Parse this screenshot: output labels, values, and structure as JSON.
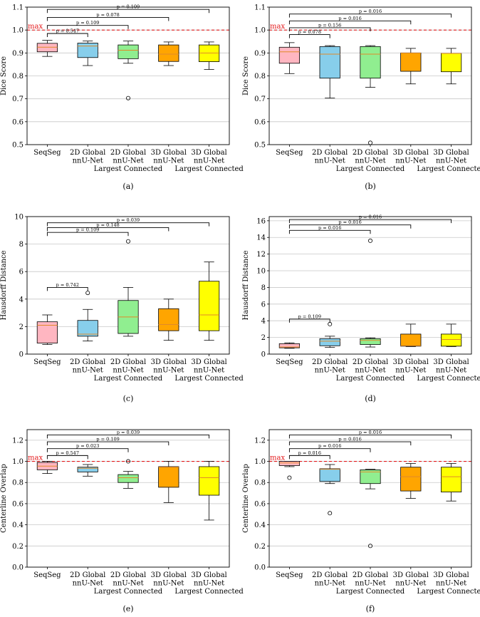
{
  "figure": {
    "common_categories": [
      "SeqSeg",
      "2D Global\nnnU-Net",
      "2D Global\nnnU-Net\nLargest Connected",
      "3D Global\nnnU-Net",
      "3D Global\nnnU-Net\nLargest Connected"
    ],
    "colors": [
      "#ffb6c1",
      "#87ceeb",
      "#90ee90",
      "#ffa500",
      "#ffff00"
    ],
    "median_color": "#e08a2a",
    "max_line_color": "#e41a1c"
  },
  "chart_data": [
    {
      "type": "box",
      "panel": "(a)",
      "ylabel": "Dice Score",
      "ylim": [
        0.5,
        1.1
      ],
      "yticks": [
        0.5,
        0.6,
        0.7,
        0.8,
        0.9,
        1.0,
        1.1
      ],
      "max_line": {
        "value": 1.0,
        "label": "max"
      },
      "boxes": [
        {
          "whislo": 0.885,
          "q1": 0.905,
          "med": 0.925,
          "q3": 0.942,
          "whishi": 0.955,
          "fliers": []
        },
        {
          "whislo": 0.845,
          "q1": 0.88,
          "med": 0.93,
          "q3": 0.943,
          "whishi": 0.952,
          "fliers": []
        },
        {
          "whislo": 0.855,
          "q1": 0.875,
          "med": 0.912,
          "q3": 0.935,
          "whishi": 0.952,
          "fliers": [
            0.703
          ]
        },
        {
          "whislo": 0.845,
          "q1": 0.863,
          "med": 0.895,
          "q3": 0.935,
          "whishi": 0.948,
          "fliers": []
        },
        {
          "whislo": 0.828,
          "q1": 0.862,
          "med": 0.9,
          "q3": 0.935,
          "whishi": 0.948,
          "fliers": []
        }
      ],
      "pvalues": [
        {
          "from": 0,
          "to": 1,
          "label": "p = 0.547",
          "y": 0.985
        },
        {
          "from": 0,
          "to": 2,
          "label": "p = 0.109",
          "y": 1.02
        },
        {
          "from": 0,
          "to": 3,
          "label": "p = 0.078",
          "y": 1.055
        },
        {
          "from": 0,
          "to": 4,
          "label": "p = 0.109",
          "y": 1.09
        }
      ]
    },
    {
      "type": "box",
      "panel": "(b)",
      "ylabel": "Dice Score",
      "ylim": [
        0.5,
        1.1
      ],
      "yticks": [
        0.5,
        0.6,
        0.7,
        0.8,
        0.9,
        1.0,
        1.1
      ],
      "max_line": {
        "value": 1.0,
        "label": "max"
      },
      "boxes": [
        {
          "whislo": 0.81,
          "q1": 0.855,
          "med": 0.905,
          "q3": 0.925,
          "whishi": 0.945,
          "fliers": []
        },
        {
          "whislo": 0.703,
          "q1": 0.79,
          "med": 0.895,
          "q3": 0.928,
          "whishi": 0.932,
          "fliers": []
        },
        {
          "whislo": 0.75,
          "q1": 0.79,
          "med": 0.895,
          "q3": 0.928,
          "whishi": 0.932,
          "fliers": [
            0.508
          ]
        },
        {
          "whislo": 0.765,
          "q1": 0.82,
          "med": 0.9,
          "q3": 0.9,
          "whishi": 0.92,
          "fliers": []
        },
        {
          "whislo": 0.765,
          "q1": 0.818,
          "med": 0.898,
          "q3": 0.898,
          "whishi": 0.92,
          "fliers": []
        }
      ],
      "pvalues": [
        {
          "from": 0,
          "to": 1,
          "label": "p = 0.078",
          "y": 0.98
        },
        {
          "from": 0,
          "to": 2,
          "label": "p = 0.156",
          "y": 1.01
        },
        {
          "from": 0,
          "to": 3,
          "label": "p = 0.016",
          "y": 1.04
        },
        {
          "from": 0,
          "to": 4,
          "label": "p = 0.016",
          "y": 1.07
        }
      ]
    },
    {
      "type": "box",
      "panel": "(c)",
      "ylabel": "Hausdorff Distance",
      "ylim": [
        0,
        10
      ],
      "yticks": [
        0,
        2,
        4,
        6,
        8,
        10
      ],
      "boxes": [
        {
          "whislo": 0.7,
          "q1": 0.8,
          "med": 2.1,
          "q3": 2.35,
          "whishi": 2.85,
          "fliers": []
        },
        {
          "whislo": 0.95,
          "q1": 1.3,
          "med": 1.45,
          "q3": 2.45,
          "whishi": 3.25,
          "fliers": [
            4.45
          ]
        },
        {
          "whislo": 1.3,
          "q1": 1.5,
          "med": 2.7,
          "q3": 3.9,
          "whishi": 4.85,
          "fliers": [
            8.2
          ]
        },
        {
          "whislo": 1.0,
          "q1": 1.7,
          "med": 2.15,
          "q3": 3.3,
          "whishi": 4.0,
          "fliers": []
        },
        {
          "whislo": 1.0,
          "q1": 1.7,
          "med": 2.85,
          "q3": 5.3,
          "whishi": 6.7,
          "fliers": []
        }
      ],
      "pvalues": [
        {
          "from": 0,
          "to": 1,
          "label": "p = 0.742",
          "y": 4.85
        },
        {
          "from": 0,
          "to": 2,
          "label": "p = 0.109",
          "y": 8.85
        },
        {
          "from": 0,
          "to": 3,
          "label": "p = 0.148",
          "y": 9.2
        },
        {
          "from": 0,
          "to": 4,
          "label": "p = 0.039",
          "y": 9.55
        }
      ]
    },
    {
      "type": "box",
      "panel": "(d)",
      "ylabel": "Hausdorff Distance",
      "ylim": [
        0,
        16.5
      ],
      "yticks": [
        0,
        2,
        4,
        6,
        8,
        10,
        12,
        14,
        16
      ],
      "boxes": [
        {
          "whislo": 0.7,
          "q1": 0.75,
          "med": 0.85,
          "q3": 1.25,
          "whishi": 1.35,
          "fliers": []
        },
        {
          "whislo": 0.8,
          "q1": 1.0,
          "med": 1.55,
          "q3": 1.85,
          "whishi": 2.15,
          "fliers": [
            3.6
          ]
        },
        {
          "whislo": 0.85,
          "q1": 1.15,
          "med": 1.65,
          "q3": 1.85,
          "whishi": 1.95,
          "fliers": [
            13.6
          ]
        },
        {
          "whislo": 0.9,
          "q1": 0.95,
          "med": 1.0,
          "q3": 2.4,
          "whishi": 3.6,
          "fliers": []
        },
        {
          "whislo": 0.9,
          "q1": 0.95,
          "med": 1.75,
          "q3": 2.4,
          "whishi": 3.6,
          "fliers": []
        }
      ],
      "pvalues": [
        {
          "from": 0,
          "to": 1,
          "label": "p = 0.109",
          "y": 4.2
        },
        {
          "from": 0,
          "to": 2,
          "label": "p = 0.016",
          "y": 14.85
        },
        {
          "from": 0,
          "to": 3,
          "label": "p = 0.016",
          "y": 15.5
        },
        {
          "from": 0,
          "to": 4,
          "label": "p = 0.016",
          "y": 16.15
        }
      ]
    },
    {
      "type": "box",
      "panel": "(e)",
      "ylabel": "Centerline Overlap",
      "ylim": [
        0,
        1.3
      ],
      "yticks": [
        0.0,
        0.2,
        0.4,
        0.6,
        0.8,
        1.0,
        1.2
      ],
      "max_line": {
        "value": 1.0,
        "label": "max"
      },
      "boxes": [
        {
          "whislo": 0.885,
          "q1": 0.92,
          "med": 0.955,
          "q3": 0.99,
          "whishi": 1.0,
          "fliers": []
        },
        {
          "whislo": 0.86,
          "q1": 0.9,
          "med": 0.935,
          "q3": 0.945,
          "whishi": 0.97,
          "fliers": []
        },
        {
          "whislo": 0.745,
          "q1": 0.8,
          "med": 0.845,
          "q3": 0.875,
          "whishi": 0.905,
          "fliers": [
            1.0
          ]
        },
        {
          "whislo": 0.61,
          "q1": 0.755,
          "med": 0.945,
          "q3": 0.95,
          "whishi": 1.0,
          "fliers": []
        },
        {
          "whislo": 0.445,
          "q1": 0.68,
          "med": 0.845,
          "q3": 0.95,
          "whishi": 1.0,
          "fliers": []
        }
      ],
      "pvalues": [
        {
          "from": 0,
          "to": 1,
          "label": "p = 0.547",
          "y": 1.055
        },
        {
          "from": 0,
          "to": 2,
          "label": "p = 0.023",
          "y": 1.12
        },
        {
          "from": 0,
          "to": 3,
          "label": "p = 0.109",
          "y": 1.185
        },
        {
          "from": 0,
          "to": 4,
          "label": "p = 0.039",
          "y": 1.25
        }
      ]
    },
    {
      "type": "box",
      "panel": "(f)",
      "ylabel": "Centerline Overlap",
      "ylim": [
        0,
        1.3
      ],
      "yticks": [
        0.0,
        0.2,
        0.4,
        0.6,
        0.8,
        1.0,
        1.2
      ],
      "max_line": {
        "value": 1.0,
        "label": "max"
      },
      "boxes": [
        {
          "whislo": 0.95,
          "q1": 0.96,
          "med": 0.985,
          "q3": 1.0,
          "whishi": 1.0,
          "fliers": [
            0.845
          ]
        },
        {
          "whislo": 0.79,
          "q1": 0.81,
          "med": 0.925,
          "q3": 0.93,
          "whishi": 0.97,
          "fliers": [
            0.51
          ]
        },
        {
          "whislo": 0.74,
          "q1": 0.79,
          "med": 0.9,
          "q3": 0.92,
          "whishi": 0.925,
          "fliers": [
            0.2
          ]
        },
        {
          "whislo": 0.65,
          "q1": 0.72,
          "med": 0.855,
          "q3": 0.945,
          "whishi": 0.98,
          "fliers": []
        },
        {
          "whislo": 0.625,
          "q1": 0.71,
          "med": 0.855,
          "q3": 0.945,
          "whishi": 0.98,
          "fliers": []
        }
      ],
      "pvalues": [
        {
          "from": 0,
          "to": 1,
          "label": "p = 0.016",
          "y": 1.055
        },
        {
          "from": 0,
          "to": 2,
          "label": "p = 0.016",
          "y": 1.12
        },
        {
          "from": 0,
          "to": 3,
          "label": "p = 0.016",
          "y": 1.185
        },
        {
          "from": 0,
          "to": 4,
          "label": "p = 0.016",
          "y": 1.25
        }
      ]
    }
  ]
}
